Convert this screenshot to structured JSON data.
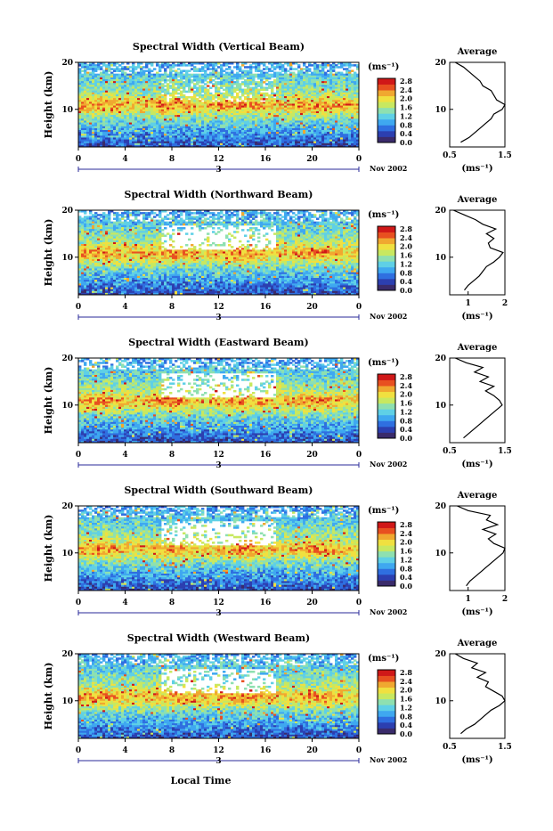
{
  "colors": {
    "scale": [
      "#3a2b6b",
      "#2c3fb0",
      "#2f6fe0",
      "#3fa8f0",
      "#5fd0e6",
      "#8ee0b0",
      "#c8e860",
      "#f0e040",
      "#f0a830",
      "#e85020",
      "#d01818"
    ]
  },
  "x_axis_label": "Local Time",
  "date_label": "Nov 2002",
  "date_marker": "3",
  "units_label": "(ms⁻¹)",
  "average_title": "Average",
  "height_label": "Height (km)",
  "chart_data": [
    {
      "type": "heatmap",
      "title": "Spectral Width (Vertical Beam)",
      "ylabel": "Height (km)",
      "xlabel": "Local Time",
      "xlim": [
        0,
        24
      ],
      "ylim": [
        2,
        20
      ],
      "x_ticks": [
        "0",
        "4",
        "8",
        "12",
        "16",
        "20",
        "0"
      ],
      "y_ticks": [
        "10",
        "20"
      ],
      "colorbar": {
        "units": "(ms⁻¹)",
        "ticks": [
          "2.8",
          "2.4",
          "2.0",
          "1.6",
          "1.2",
          "0.8",
          "0.4",
          "0.0"
        ]
      },
      "profile": {
        "title": "Average",
        "xlim": [
          0.5,
          1.5
        ],
        "x_ticks": [
          "0.5",
          "1.5"
        ],
        "xlabel": "(ms⁻¹)",
        "h": [
          3,
          4,
          5,
          6,
          7,
          8,
          9,
          10,
          11,
          12,
          13,
          14,
          15,
          16,
          17,
          18,
          19,
          20
        ],
        "v": [
          0.7,
          0.85,
          0.95,
          1.05,
          1.15,
          1.25,
          1.3,
          1.45,
          1.5,
          1.35,
          1.3,
          1.25,
          1.1,
          1.05,
          0.95,
          0.85,
          0.75,
          0.6
        ]
      }
    },
    {
      "type": "heatmap",
      "title": "Spectral Width (Northward Beam)",
      "ylabel": "Height (km)",
      "xlabel": "Local Time",
      "xlim": [
        0,
        24
      ],
      "ylim": [
        2,
        20
      ],
      "x_ticks": [
        "0",
        "4",
        "8",
        "12",
        "16",
        "20",
        "0"
      ],
      "y_ticks": [
        "10",
        "20"
      ],
      "colorbar": {
        "units": "(ms⁻¹)",
        "ticks": [
          "2.8",
          "2.4",
          "2.0",
          "1.6",
          "1.2",
          "0.8",
          "0.4",
          "0.0"
        ]
      },
      "profile": {
        "title": "Average",
        "xlim": [
          0.5,
          2
        ],
        "x_ticks": [
          "1",
          "2"
        ],
        "xlabel": "(ms⁻¹)",
        "h": [
          3,
          4,
          5,
          6,
          7,
          8,
          9,
          10,
          11,
          12,
          13,
          14,
          15,
          16,
          17,
          18,
          19,
          20
        ],
        "v": [
          0.9,
          1.0,
          1.15,
          1.3,
          1.4,
          1.5,
          1.7,
          1.85,
          1.95,
          1.6,
          1.55,
          1.7,
          1.5,
          1.75,
          1.4,
          1.2,
          0.9,
          0.6
        ]
      }
    },
    {
      "type": "heatmap",
      "title": "Spectral Width (Eastward Beam)",
      "ylabel": "Height (km)",
      "xlabel": "Local Time",
      "xlim": [
        0,
        24
      ],
      "ylim": [
        2,
        20
      ],
      "x_ticks": [
        "0",
        "4",
        "8",
        "12",
        "16",
        "20",
        "0"
      ],
      "y_ticks": [
        "10",
        "20"
      ],
      "colorbar": {
        "units": "(ms⁻¹)",
        "ticks": [
          "2.8",
          "2.4",
          "2.0",
          "1.6",
          "1.2",
          "0.8",
          "0.4",
          "0.0"
        ]
      },
      "profile": {
        "title": "Average",
        "xlim": [
          0.5,
          1.5
        ],
        "x_ticks": [
          "0.5",
          "1.5"
        ],
        "xlabel": "(ms⁻¹)",
        "h": [
          3,
          4,
          5,
          6,
          7,
          8,
          9,
          10,
          11,
          12,
          13,
          14,
          15,
          16,
          17,
          18,
          19,
          20
        ],
        "v": [
          0.75,
          0.85,
          0.95,
          1.05,
          1.15,
          1.25,
          1.35,
          1.45,
          1.4,
          1.3,
          1.15,
          1.3,
          1.05,
          1.2,
          0.95,
          1.1,
          0.8,
          0.6
        ]
      }
    },
    {
      "type": "heatmap",
      "title": "Spectral Width (Southward Beam)",
      "ylabel": "Height (km)",
      "xlabel": "Local Time",
      "xlim": [
        0,
        24
      ],
      "ylim": [
        2,
        20
      ],
      "x_ticks": [
        "0",
        "4",
        "8",
        "12",
        "16",
        "20",
        "0"
      ],
      "y_ticks": [
        "10",
        "20"
      ],
      "colorbar": {
        "units": "(ms⁻¹)",
        "ticks": [
          "2.8",
          "2.4",
          "2.0",
          "1.6",
          "1.2",
          "0.8",
          "0.4",
          "0.0"
        ]
      },
      "profile": {
        "title": "Average",
        "xlim": [
          0.5,
          2
        ],
        "x_ticks": [
          "1",
          "2"
        ],
        "xlabel": "(ms⁻¹)",
        "h": [
          3,
          4,
          5,
          6,
          7,
          8,
          9,
          10,
          11,
          12,
          13,
          14,
          15,
          16,
          17,
          18,
          19,
          20
        ],
        "v": [
          0.95,
          1.05,
          1.2,
          1.35,
          1.5,
          1.65,
          1.8,
          1.95,
          2.0,
          1.7,
          1.55,
          1.75,
          1.4,
          1.8,
          1.5,
          1.6,
          1.0,
          0.7
        ]
      }
    },
    {
      "type": "heatmap",
      "title": "Spectral Width (Westward Beam)",
      "ylabel": "Height (km)",
      "xlabel": "Local Time",
      "xlim": [
        0,
        24
      ],
      "ylim": [
        2,
        20
      ],
      "x_ticks": [
        "0",
        "4",
        "8",
        "12",
        "16",
        "20",
        "0"
      ],
      "y_ticks": [
        "10",
        "20"
      ],
      "colorbar": {
        "units": "(ms⁻¹)",
        "ticks": [
          "2.8",
          "2.4",
          "2.0",
          "1.6",
          "1.2",
          "0.8",
          "0.4",
          "0.0"
        ]
      },
      "profile": {
        "title": "Average",
        "xlim": [
          0.5,
          1.5
        ],
        "x_ticks": [
          "0.5",
          "1.5"
        ],
        "xlabel": "(ms⁻¹)",
        "h": [
          3,
          4,
          5,
          6,
          7,
          8,
          9,
          10,
          11,
          12,
          13,
          14,
          15,
          16,
          17,
          18,
          19,
          20
        ],
        "v": [
          0.7,
          0.8,
          0.95,
          1.05,
          1.15,
          1.25,
          1.4,
          1.5,
          1.45,
          1.3,
          1.15,
          1.2,
          1.0,
          1.15,
          0.9,
          1.0,
          0.75,
          0.6
        ]
      }
    }
  ]
}
